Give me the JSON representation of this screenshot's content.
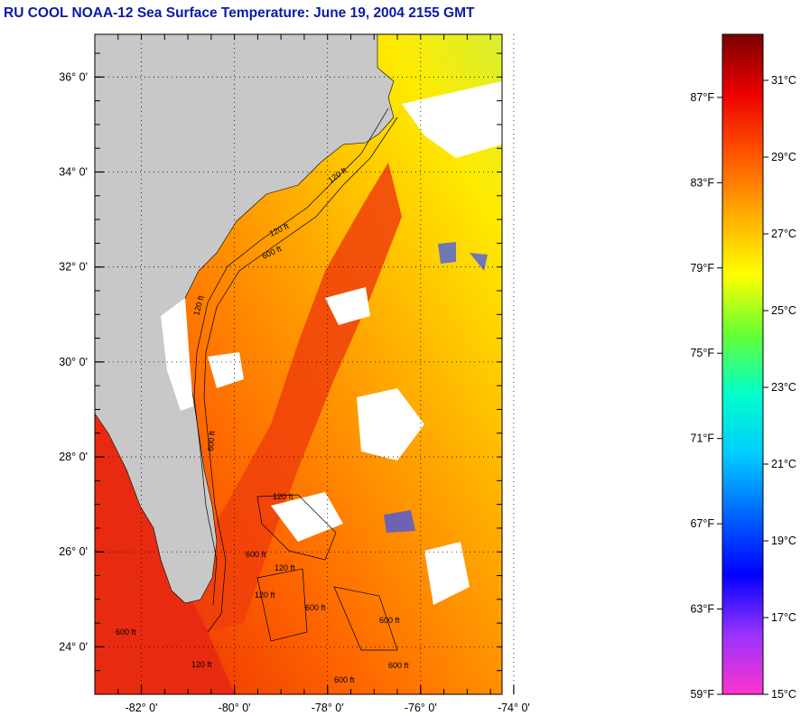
{
  "title": "RU COOL  NOAA-12  Sea Surface Temperature:  June 19, 2004 2155 GMT",
  "map": {
    "lat_range": [
      23.0,
      36.9
    ],
    "lon_range": [
      -83.0,
      -74.25
    ],
    "lat_ticks": [
      {
        "value": 36,
        "label": "36° 0'"
      },
      {
        "value": 34,
        "label": "34° 0'"
      },
      {
        "value": 32,
        "label": "32° 0'"
      },
      {
        "value": 30,
        "label": "30° 0'"
      },
      {
        "value": 28,
        "label": "28° 0'"
      },
      {
        "value": 26,
        "label": "26° 0'"
      },
      {
        "value": 24,
        "label": "24° 0'"
      }
    ],
    "lon_ticks": [
      {
        "value": -82,
        "label": "-82° 0'"
      },
      {
        "value": -80,
        "label": "-80° 0'"
      },
      {
        "value": -78,
        "label": "-78° 0'"
      },
      {
        "value": -76,
        "label": "-76° 0'"
      },
      {
        "value": -74,
        "label": "-74° 0'"
      }
    ],
    "isobath_labels": [
      "120 ft",
      "600 ft"
    ],
    "colors": {
      "land": "#c8c8c8",
      "cloud": "#ffffff",
      "grid": "#000000"
    }
  },
  "colorbar": {
    "range_c": [
      15,
      32.2
    ],
    "fahrenheit_labels": [
      {
        "value_f": 87,
        "label": "87°F"
      },
      {
        "value_f": 83,
        "label": "83°F"
      },
      {
        "value_f": 79,
        "label": "79°F"
      },
      {
        "value_f": 75,
        "label": "75°F"
      },
      {
        "value_f": 71,
        "label": "71°F"
      },
      {
        "value_f": 67,
        "label": "67°F"
      },
      {
        "value_f": 63,
        "label": "63°F"
      },
      {
        "value_f": 59,
        "label": "59°F"
      }
    ],
    "celsius_labels": [
      {
        "value_c": 31,
        "label": "31°C"
      },
      {
        "value_c": 29,
        "label": "29°C"
      },
      {
        "value_c": 27,
        "label": "27°C"
      },
      {
        "value_c": 25,
        "label": "25°C"
      },
      {
        "value_c": 23,
        "label": "23°C"
      },
      {
        "value_c": 21,
        "label": "21°C"
      },
      {
        "value_c": 19,
        "label": "19°C"
      },
      {
        "value_c": 17,
        "label": "17°C"
      },
      {
        "value_c": 15,
        "label": "15°C"
      }
    ],
    "stops": [
      "#ff33cc",
      "#9933ff",
      "#0000ff",
      "#0066ff",
      "#00ccff",
      "#00ffcc",
      "#66ff33",
      "#ffff00",
      "#ffaa00",
      "#ff5500",
      "#ee0000",
      "#7a0000"
    ]
  }
}
